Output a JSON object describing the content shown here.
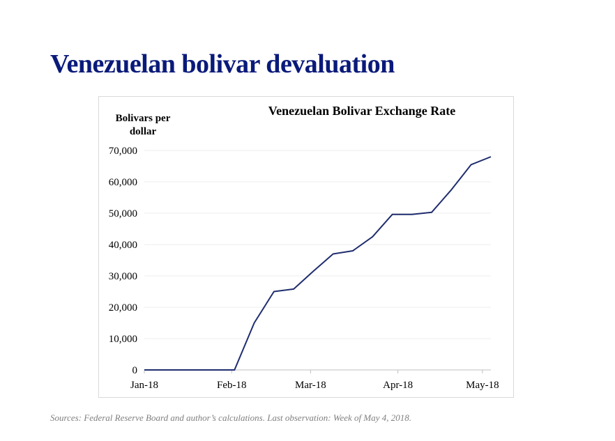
{
  "slide": {
    "title": "Venezuelan bolivar devaluation",
    "source_note": "Sources: Federal Reserve Board and author’s calculations. Last observation: Week of May 4, 2018."
  },
  "chart_data": {
    "type": "line",
    "title": "Venezuelan Bolivar Exchange Rate",
    "ylabel": "Bolivars per dollar",
    "xlabel": "",
    "ylim": [
      0,
      70000
    ],
    "yticks": [
      0,
      10000,
      20000,
      30000,
      40000,
      50000,
      60000,
      70000
    ],
    "ytick_labels": [
      "0",
      "10,000",
      "20,000",
      "30,000",
      "40,000",
      "50,000",
      "60,000",
      "70,000"
    ],
    "xticks": [
      "2018-01-01",
      "2018-02-01",
      "2018-03-01",
      "2018-04-01",
      "2018-05-01"
    ],
    "xtick_labels": [
      "Jan-18",
      "Feb-18",
      "Mar-18",
      "Apr-18",
      "May-18"
    ],
    "xlim": [
      "2018-01-01",
      "2018-05-04"
    ],
    "grid": "horizontal",
    "legend": "none",
    "series": [
      {
        "color": "#1f2d6e",
        "x": [
          "2018-01-01",
          "2018-01-05",
          "2018-01-12",
          "2018-01-19",
          "2018-01-26",
          "2018-02-02",
          "2018-02-09",
          "2018-02-16",
          "2018-02-23",
          "2018-03-02",
          "2018-03-09",
          "2018-03-16",
          "2018-03-23",
          "2018-03-30",
          "2018-04-06",
          "2018-04-13",
          "2018-04-20",
          "2018-04-27",
          "2018-05-04"
        ],
        "values": [
          0,
          0,
          0,
          0,
          0,
          0,
          15000,
          25000,
          25800,
          31500,
          37000,
          38000,
          42500,
          49600,
          49600,
          50300,
          57500,
          65500,
          68000
        ]
      }
    ]
  }
}
